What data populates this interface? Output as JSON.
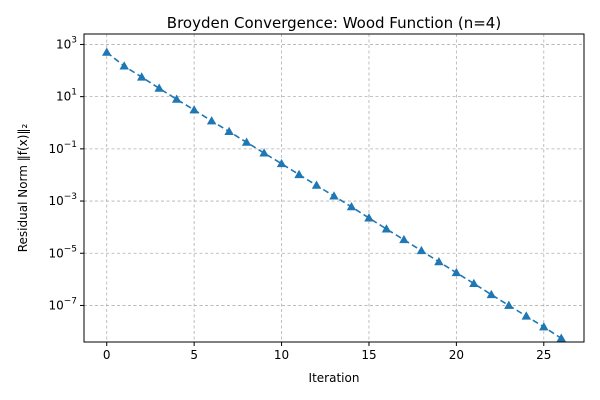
{
  "chart_data": {
    "type": "line",
    "title": "Broyden Convergence: Wood Function (n=4)",
    "xlabel": "Iteration",
    "ylabel": "Residual Norm ‖f(x)‖₂",
    "xlim": [
      -1.3,
      27.3
    ],
    "ylim_log10": [
      -8.4,
      3.4
    ],
    "y_scale": "log",
    "grid": true,
    "x_ticks": [
      0,
      5,
      10,
      15,
      20,
      25
    ],
    "y_ticks": [
      {
        "exp": 3,
        "base": "10",
        "sup": "3"
      },
      {
        "exp": 1,
        "base": "10",
        "sup": "1"
      },
      {
        "exp": -1,
        "base": "10",
        "sup": "−1"
      },
      {
        "exp": -3,
        "base": "10",
        "sup": "−3"
      },
      {
        "exp": -5,
        "base": "10",
        "sup": "−5"
      },
      {
        "exp": -7,
        "base": "10",
        "sup": "−7"
      }
    ],
    "series": [
      {
        "color": "#1f77b4",
        "marker": "triangle-up",
        "linestyle": "dashed",
        "x": [
          0,
          1,
          2,
          3,
          4,
          5,
          6,
          7,
          8,
          9,
          10,
          11,
          12,
          13,
          14,
          15,
          16,
          17,
          18,
          19,
          20,
          21,
          22,
          23,
          24,
          25,
          26
        ],
        "y": [
          500,
          148,
          56,
          20.9,
          7.9,
          3.1,
          1.17,
          0.46,
          0.178,
          0.069,
          0.027,
          0.0103,
          0.004,
          0.00155,
          0.0006,
          0.000224,
          8.5e-05,
          3.3e-05,
          1.25e-05,
          4.7e-06,
          1.8e-06,
          6.9e-07,
          2.6e-07,
          1e-07,
          3.9e-08,
          1.5e-08,
          5.5e-09
        ]
      }
    ]
  }
}
